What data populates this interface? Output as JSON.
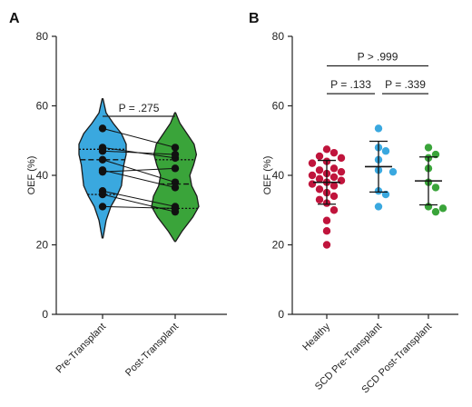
{
  "chart_data": [
    {
      "panel": "A",
      "type": "violin",
      "ylabel": "OEF (%)",
      "ylim": [
        0,
        80
      ],
      "yticks": [
        "0",
        "20",
        "40",
        "60",
        "80"
      ],
      "categories": [
        "Pre-Transplant",
        "Post-Transplant"
      ],
      "colors": [
        "#3aa8df",
        "#3aa43a"
      ],
      "violins": [
        {
          "name": "Pre-Transplant",
          "median": 44.5,
          "q1": 34.5,
          "q3": 47.5,
          "min": 22,
          "max": 62
        },
        {
          "name": "Post-Transplant",
          "median": 37.5,
          "q1": 30.5,
          "q3": 44.5,
          "min": 21,
          "max": 58
        }
      ],
      "paired": {
        "pre": [
          53.5,
          48,
          47,
          44.5,
          41.5,
          41,
          35.5,
          34.5,
          31
        ],
        "post": [
          48,
          45,
          46,
          38,
          36.5,
          42,
          31,
          29.5,
          30.5
        ]
      },
      "comparison": {
        "label": "P = .275"
      }
    },
    {
      "panel": "B",
      "type": "scatter",
      "ylabel": "OEF (%)",
      "ylim": [
        0,
        80
      ],
      "yticks": [
        "0",
        "20",
        "40",
        "60",
        "80"
      ],
      "categories": [
        "Healthy",
        "SCD Pre-Transplant",
        "SCD Post-Transplant"
      ],
      "colors": [
        "#c0143c",
        "#3aa8df",
        "#3aa43a"
      ],
      "series": [
        {
          "name": "Healthy",
          "values": [
            47.5,
            46.5,
            45.5,
            45,
            44,
            43.5,
            42,
            41.5,
            41,
            40.5,
            40,
            39.5,
            39,
            38.5,
            38,
            37.5,
            37,
            36,
            35,
            34,
            33,
            32,
            30,
            27,
            24,
            20
          ]
        },
        {
          "name": "SCD Pre-Transplant",
          "values": [
            53.5,
            48,
            47,
            44.5,
            41.5,
            41,
            35.5,
            34.5,
            31
          ]
        },
        {
          "name": "SCD Post-Transplant",
          "values": [
            48,
            46,
            45,
            42,
            38,
            36.5,
            31,
            30.5,
            29.5
          ]
        }
      ],
      "summary": [
        {
          "mean": 38,
          "sd": 6.3
        },
        {
          "mean": 42.5,
          "sd": 7.3
        },
        {
          "mean": 38.4,
          "sd": 6.9
        }
      ],
      "comparisons": [
        {
          "label": "P = .133",
          "from": 0,
          "to": 1
        },
        {
          "label": "P = .339",
          "from": 1,
          "to": 2
        },
        {
          "label": "P > .999",
          "from": 0,
          "to": 2
        }
      ]
    }
  ]
}
